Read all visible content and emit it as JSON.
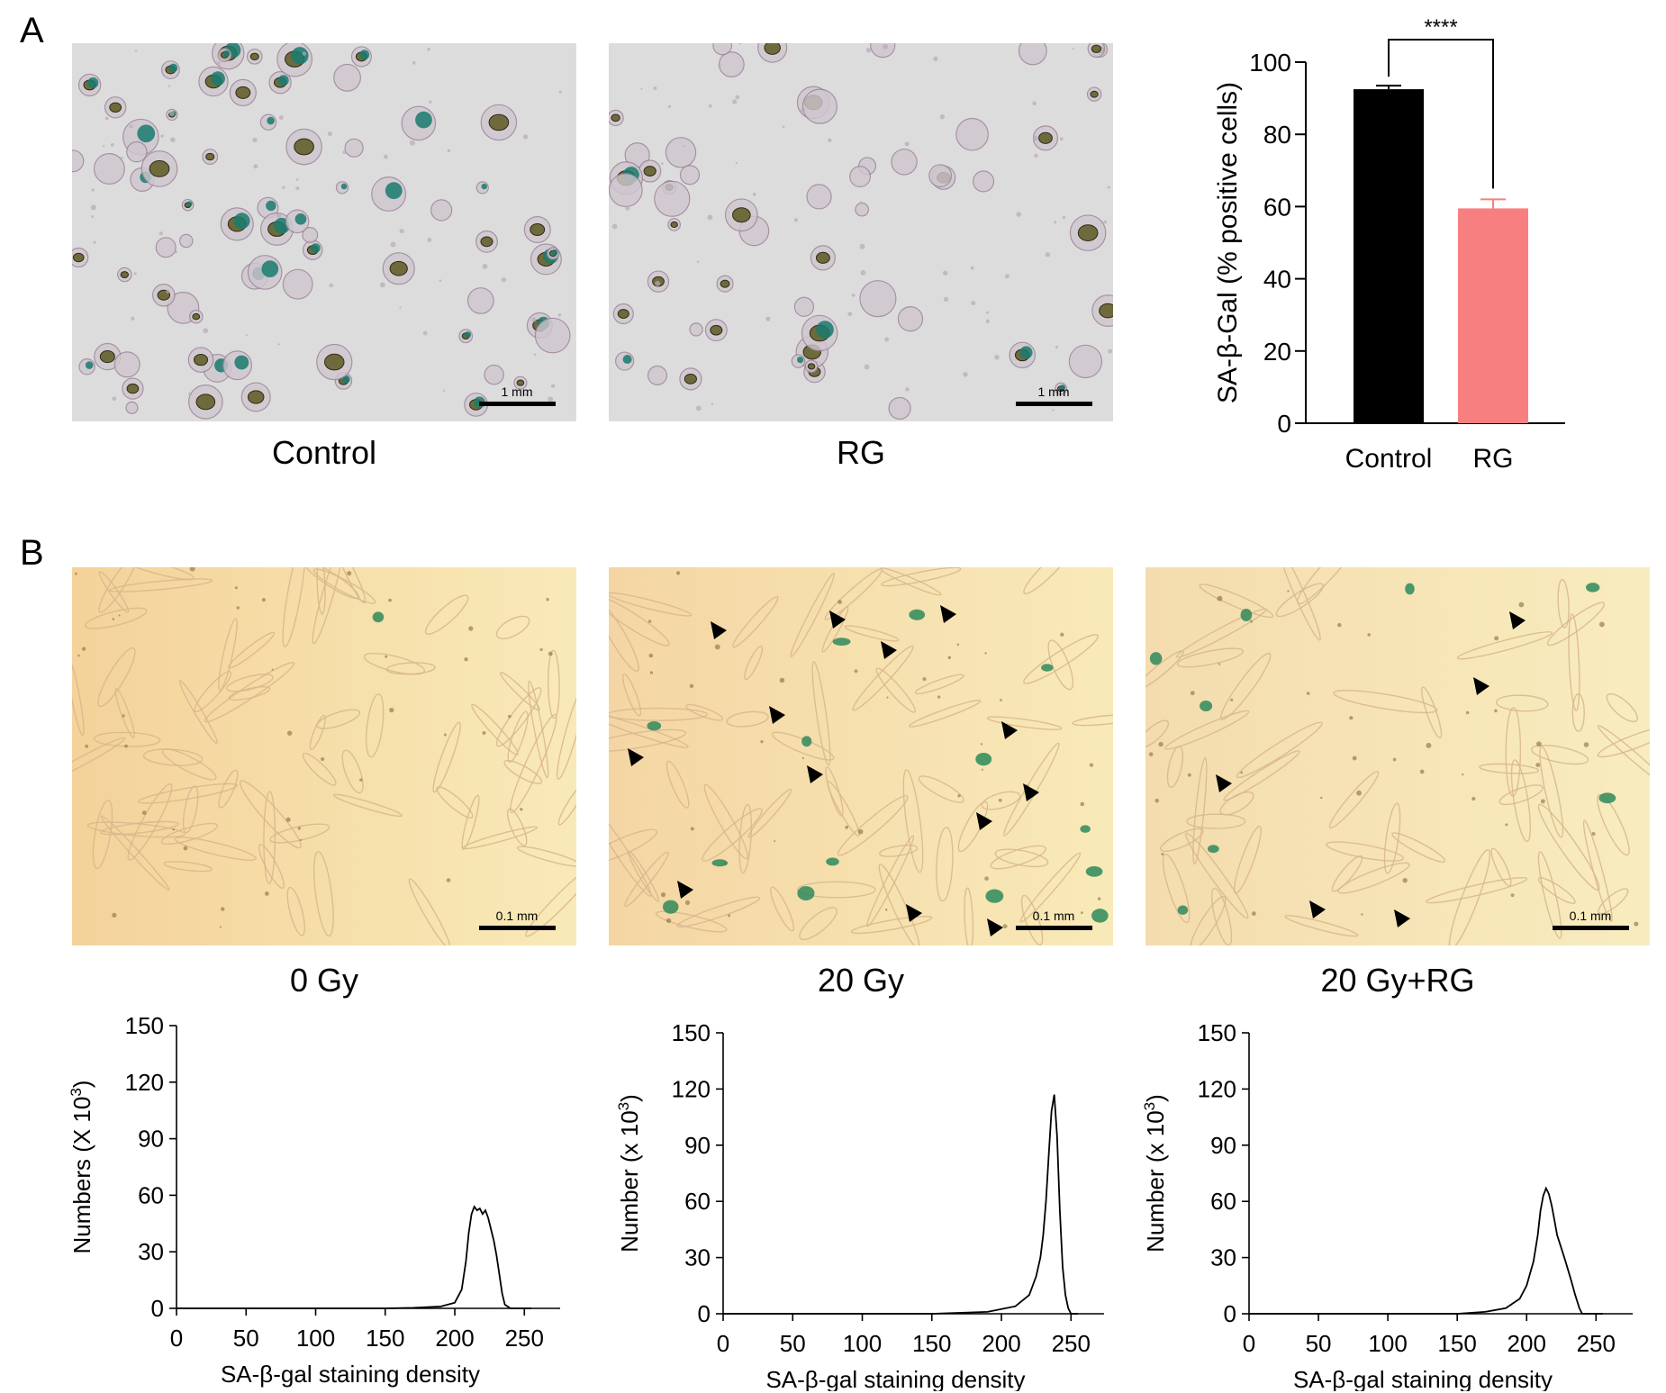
{
  "panels": {
    "A": {
      "letter": "A",
      "images": [
        {
          "caption": "Control",
          "scale_bar": "1 mm"
        },
        {
          "caption": "RG",
          "scale_bar": "1 mm"
        }
      ]
    },
    "B": {
      "letter": "B",
      "images": [
        {
          "caption": "0 Gy",
          "scale_bar": "0.1 mm"
        },
        {
          "caption": "20 Gy",
          "scale_bar": "0.1 mm"
        },
        {
          "caption": "20 Gy+RG",
          "scale_bar": "0.1 mm"
        }
      ]
    }
  },
  "colors": {
    "control_bar": "#000000",
    "rg_bar": "#f87f7f",
    "blue_stain": "#1a7a6e",
    "panelA_bg": "#dcdcdc",
    "panelB_bg": "#f6dda8"
  },
  "chart_data": [
    {
      "type": "bar",
      "ylabel": "SA-β-Gal (% positive cells)",
      "categories": [
        "Control",
        "RG"
      ],
      "values": [
        92.5,
        59.5
      ],
      "errors": [
        1,
        2.5
      ],
      "ylim": [
        0,
        100
      ],
      "yticks": [
        0,
        20,
        40,
        60,
        80,
        100
      ],
      "significance": "****"
    },
    {
      "type": "line",
      "xlabel": "SA-β-gal staining density",
      "ylabel_main": "Numbers (X 10",
      "ylabel_sup": "3",
      "ylabel_end": ")",
      "xlim": [
        0,
        255
      ],
      "ylim": [
        0,
        150
      ],
      "xticks": [
        0,
        50,
        100,
        150,
        200,
        250
      ],
      "yticks": [
        0,
        30,
        60,
        90,
        120,
        150
      ],
      "x": [
        0,
        150,
        170,
        190,
        200,
        205,
        208,
        210,
        212,
        214,
        216,
        218,
        220,
        222,
        224,
        226,
        228,
        230,
        232,
        234,
        236,
        240,
        255
      ],
      "y": [
        0,
        0,
        0.3,
        1,
        3,
        10,
        25,
        40,
        50,
        54,
        52,
        53,
        50,
        52,
        48,
        42,
        36,
        28,
        18,
        8,
        2,
        0,
        0
      ]
    },
    {
      "type": "line",
      "xlabel": "SA-β-gal staining density",
      "ylabel_main": "Number (x 10",
      "ylabel_sup": "3",
      "ylabel_end": ")",
      "xlim": [
        0,
        255
      ],
      "ylim": [
        0,
        150
      ],
      "xticks": [
        0,
        50,
        100,
        150,
        200,
        250
      ],
      "yticks": [
        0,
        30,
        60,
        90,
        120,
        150
      ],
      "x": [
        0,
        150,
        190,
        210,
        220,
        225,
        228,
        230,
        232,
        234,
        236,
        238,
        240,
        242,
        244,
        246,
        248,
        250,
        255
      ],
      "y": [
        0,
        0,
        1,
        4,
        10,
        20,
        30,
        42,
        60,
        85,
        108,
        117,
        95,
        55,
        25,
        10,
        3,
        0,
        0
      ]
    },
    {
      "type": "line",
      "xlabel": "SA-β-gal staining density",
      "ylabel_main": "Number (x 10",
      "ylabel_sup": "3",
      "ylabel_end": ")",
      "xlim": [
        0,
        255
      ],
      "ylim": [
        0,
        150
      ],
      "xticks": [
        0,
        50,
        100,
        150,
        200,
        250
      ],
      "yticks": [
        0,
        30,
        60,
        90,
        120,
        150
      ],
      "x": [
        0,
        150,
        170,
        185,
        195,
        200,
        205,
        208,
        210,
        212,
        214,
        216,
        218,
        220,
        222,
        225,
        228,
        232,
        235,
        238,
        240,
        255
      ],
      "y": [
        0,
        0,
        1,
        3,
        8,
        15,
        28,
        42,
        55,
        63,
        67,
        64,
        58,
        50,
        42,
        35,
        28,
        18,
        10,
        3,
        0,
        0
      ]
    }
  ]
}
